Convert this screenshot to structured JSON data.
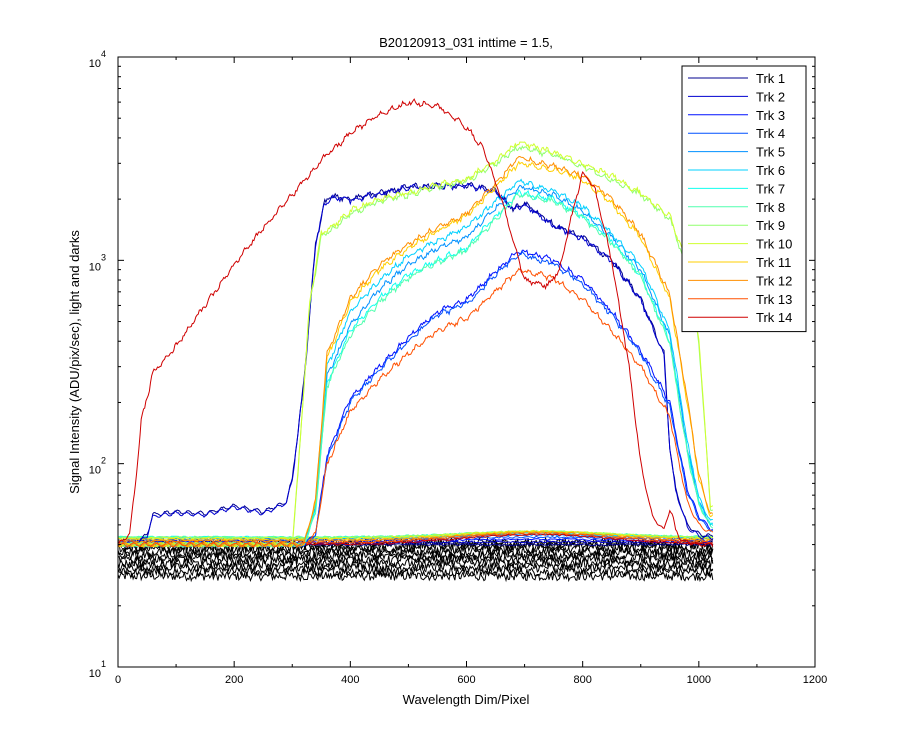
{
  "chart_data": {
    "type": "line",
    "title": "B20120913_031 inttime = 1.5,",
    "xlabel": "Wavelength Dim/Pixel",
    "ylabel": "Signal Intensity (ADU/pix/sec), light and darks",
    "xlim": [
      0,
      1200
    ],
    "ylim": [
      10,
      10000
    ],
    "yscale": "log",
    "xticks": [
      "0",
      "200",
      "400",
      "600",
      "800",
      "1000",
      "1200"
    ],
    "yticks": [
      {
        "base": "10",
        "exp": "1"
      },
      {
        "base": "10",
        "exp": "2"
      },
      {
        "base": "10",
        "exp": "3"
      },
      {
        "base": "10",
        "exp": "4"
      }
    ],
    "grid": false,
    "legend_position": "top-right",
    "dark_band": {
      "color": "#000000",
      "x_range": [
        0,
        1025
      ],
      "y_range": [
        28,
        41
      ]
    },
    "series": [
      {
        "name": "Trk 1",
        "color": "#00008f",
        "x": [
          0,
          30,
          50,
          60,
          100,
          150,
          200,
          250,
          290,
          300,
          320,
          340,
          355,
          365,
          380,
          400,
          500,
          600,
          650,
          680,
          700,
          750,
          800,
          850,
          900,
          940,
          950,
          960,
          980,
          1000,
          1020
        ],
        "y": [
          40,
          40,
          45,
          56,
          58,
          57,
          62,
          58,
          65,
          85,
          250,
          1200,
          1900,
          2050,
          2050,
          2000,
          2300,
          2350,
          2200,
          1800,
          1900,
          1500,
          1300,
          1000,
          650,
          350,
          120,
          75,
          50,
          45,
          44
        ]
      },
      {
        "name": "Trk 2",
        "color": "#0000cf",
        "x": [
          0,
          30,
          50,
          60,
          100,
          150,
          200,
          250,
          290,
          300,
          320,
          340,
          355,
          365,
          380,
          400,
          500,
          600,
          650,
          680,
          700,
          750,
          800,
          850,
          900,
          940,
          950,
          960,
          980,
          1000,
          1020
        ],
        "y": [
          40,
          40,
          44,
          55,
          57,
          56,
          61,
          57,
          64,
          84,
          245,
          1180,
          1880,
          2030,
          2030,
          1980,
          2280,
          2330,
          2180,
          1780,
          1880,
          1480,
          1280,
          990,
          640,
          340,
          118,
          74,
          49,
          44,
          43
        ]
      },
      {
        "name": "Trk 3",
        "color": "#0010ff",
        "x": [
          0,
          320,
          340,
          360,
          400,
          450,
          500,
          550,
          600,
          650,
          690,
          750,
          800,
          850,
          900,
          950,
          980,
          1000,
          1020
        ],
        "y": [
          40,
          40,
          45,
          110,
          210,
          300,
          420,
          560,
          640,
          880,
          1120,
          1000,
          800,
          560,
          360,
          200,
          75,
          55,
          48
        ]
      },
      {
        "name": "Trk 4",
        "color": "#0050ff",
        "x": [
          0,
          320,
          340,
          360,
          400,
          450,
          500,
          550,
          600,
          650,
          690,
          750,
          800,
          850,
          900,
          950,
          980,
          1000,
          1020
        ],
        "y": [
          40,
          40,
          45,
          105,
          200,
          290,
          400,
          540,
          610,
          850,
          1080,
          960,
          770,
          540,
          345,
          190,
          72,
          54,
          47
        ]
      },
      {
        "name": "Trk 5",
        "color": "#0090ff",
        "x": [
          0,
          320,
          340,
          360,
          400,
          450,
          500,
          550,
          600,
          650,
          690,
          750,
          800,
          850,
          900,
          950,
          980,
          1000,
          1020
        ],
        "y": [
          40,
          40,
          60,
          270,
          480,
          720,
          950,
          1150,
          1300,
          1800,
          2300,
          2100,
          1750,
          1300,
          900,
          420,
          120,
          65,
          50
        ]
      },
      {
        "name": "Trk 6",
        "color": "#00d0ff",
        "x": [
          0,
          320,
          340,
          360,
          400,
          450,
          500,
          550,
          600,
          650,
          690,
          750,
          800,
          850,
          900,
          950,
          980,
          1000,
          1020
        ],
        "y": [
          40,
          40,
          62,
          300,
          560,
          800,
          1050,
          1250,
          1450,
          1950,
          2450,
          2200,
          1850,
          1350,
          950,
          450,
          130,
          68,
          52
        ]
      },
      {
        "name": "Trk 7",
        "color": "#10ffef",
        "x": [
          0,
          320,
          340,
          360,
          400,
          450,
          500,
          550,
          600,
          650,
          690,
          750,
          800,
          850,
          900,
          950,
          980,
          1000,
          1020
        ],
        "y": [
          40,
          40,
          58,
          250,
          450,
          650,
          850,
          1000,
          1150,
          1650,
          2150,
          2000,
          1650,
          1250,
          850,
          400,
          115,
          64,
          50
        ]
      },
      {
        "name": "Trk 8",
        "color": "#50ffaf",
        "x": [
          0,
          320,
          340,
          360,
          400,
          450,
          500,
          550,
          600,
          650,
          690,
          750,
          800,
          850,
          900,
          950,
          980,
          1000,
          1020
        ],
        "y": [
          40,
          40,
          57,
          240,
          430,
          620,
          820,
          980,
          1120,
          1600,
          2100,
          1950,
          1620,
          1220,
          830,
          390,
          112,
          63,
          49
        ]
      },
      {
        "name": "Trk 9",
        "color": "#90ff6f",
        "x": [
          0,
          300,
          310,
          330,
          350,
          380,
          400,
          450,
          500,
          550,
          600,
          650,
          690,
          750,
          800,
          850,
          900,
          950,
          980,
          1000,
          1020
        ],
        "y": [
          40,
          40,
          90,
          600,
          1300,
          1500,
          1700,
          1950,
          2100,
          2300,
          2450,
          3000,
          3600,
          3300,
          2900,
          2500,
          2100,
          1600,
          900,
          400,
          60
        ]
      },
      {
        "name": "Trk 10",
        "color": "#cfff2f",
        "x": [
          0,
          300,
          310,
          330,
          350,
          380,
          400,
          450,
          500,
          550,
          600,
          650,
          690,
          750,
          800,
          850,
          900,
          950,
          980,
          1000,
          1020
        ],
        "y": [
          40,
          40,
          92,
          620,
          1350,
          1550,
          1750,
          2000,
          2150,
          2350,
          2500,
          3100,
          3800,
          3400,
          3000,
          2600,
          2150,
          1650,
          950,
          420,
          62
        ]
      },
      {
        "name": "Trk 11",
        "color": "#ffcf00",
        "x": [
          0,
          320,
          340,
          360,
          400,
          450,
          500,
          550,
          600,
          650,
          690,
          750,
          800,
          850,
          900,
          950,
          980,
          1000,
          1020
        ],
        "y": [
          40,
          40,
          65,
          330,
          620,
          900,
          1150,
          1400,
          1650,
          2300,
          3000,
          2800,
          2500,
          1900,
          1300,
          650,
          200,
          85,
          55
        ]
      },
      {
        "name": "Trk 12",
        "color": "#ff8f00",
        "x": [
          0,
          320,
          340,
          360,
          400,
          450,
          500,
          550,
          600,
          650,
          690,
          750,
          800,
          850,
          900,
          950,
          980,
          1000,
          1020
        ],
        "y": [
          40,
          40,
          66,
          350,
          650,
          950,
          1200,
          1450,
          1700,
          2400,
          3200,
          2900,
          2600,
          2000,
          1350,
          680,
          210,
          88,
          56
        ]
      },
      {
        "name": "Trk 13",
        "color": "#ff5000",
        "x": [
          0,
          320,
          340,
          360,
          400,
          450,
          500,
          550,
          600,
          650,
          690,
          750,
          800,
          850,
          900,
          950,
          980,
          1000,
          1020
        ],
        "y": [
          40,
          40,
          45,
          100,
          180,
          260,
          350,
          450,
          520,
          700,
          900,
          820,
          640,
          450,
          300,
          170,
          65,
          50,
          46
        ]
      },
      {
        "name": "Trk 14",
        "color": "#cf0000",
        "x": [
          0,
          20,
          30,
          40,
          60,
          80,
          100,
          150,
          200,
          250,
          300,
          350,
          400,
          450,
          500,
          550,
          600,
          630,
          660,
          700,
          740,
          760,
          780,
          800,
          820,
          850,
          880,
          900,
          920,
          940,
          950,
          955,
          960,
          970,
          1000,
          1020
        ],
        "y": [
          40,
          45,
          80,
          160,
          280,
          320,
          380,
          600,
          950,
          1450,
          2100,
          3100,
          4200,
          5200,
          6000,
          5800,
          4500,
          3500,
          2000,
          800,
          750,
          900,
          1600,
          2700,
          2300,
          1000,
          300,
          100,
          55,
          47,
          60,
          55,
          47,
          42,
          40,
          40
        ]
      }
    ]
  }
}
